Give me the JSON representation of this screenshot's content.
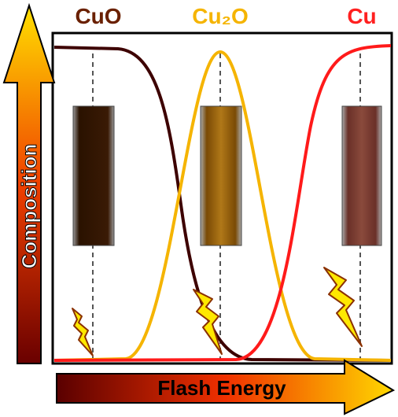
{
  "labels": {
    "cuo": "CuO",
    "cu2o": "Cu₂O",
    "cu": "Cu"
  },
  "y_axis": "Composition",
  "x_axis": "Flash Energy"
}
